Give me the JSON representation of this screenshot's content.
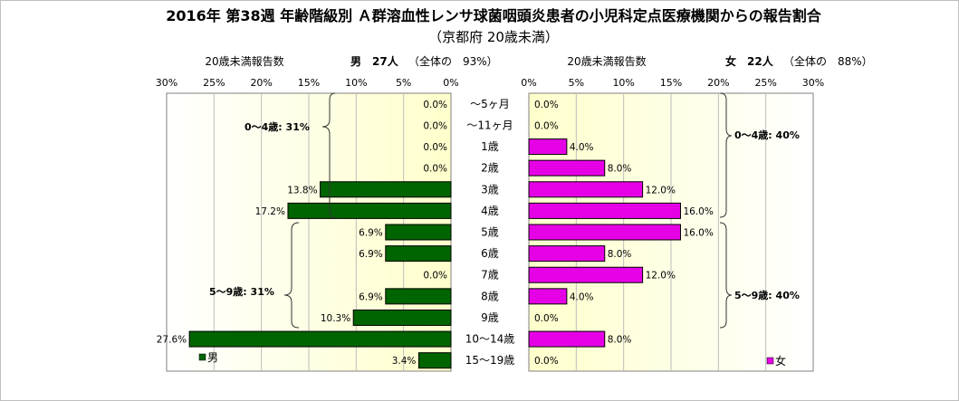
{
  "chart_data": {
    "type": "bar",
    "title": "2016年 第38週 年齢階級別 Ａ群溶血性レンサ球菌咽頭炎患者の小児科定点医療機関からの報告割合",
    "subtitle": "（京都府 20歳未満）",
    "categories": [
      "～5ヶ月",
      "～11ヶ月",
      "1歳",
      "2歳",
      "3歳",
      "4歳",
      "5歳",
      "6歳",
      "7歳",
      "8歳",
      "9歳",
      "10～14歳",
      "15～19歳"
    ],
    "series": [
      {
        "name": "男",
        "color": "#006400",
        "values": [
          0.0,
          0.0,
          0.0,
          0.0,
          13.8,
          17.2,
          6.9,
          6.9,
          0.0,
          6.9,
          10.3,
          27.6,
          3.4
        ],
        "value_labels": [
          "0.0%",
          "0.0%",
          "0.0%",
          "0.0%",
          "13.8%",
          "17.2%",
          "6.9%",
          "6.9%",
          "0.0%",
          "6.9%",
          "10.3%",
          "27.6%",
          "3.4%"
        ]
      },
      {
        "name": "女",
        "color": "#e600e6",
        "values": [
          0.0,
          0.0,
          4.0,
          8.0,
          12.0,
          16.0,
          16.0,
          8.0,
          12.0,
          4.0,
          0.0,
          8.0,
          0.0
        ],
        "value_labels": [
          "0.0%",
          "0.0%",
          "4.0%",
          "8.0%",
          "12.0%",
          "16.0%",
          "16.0%",
          "8.0%",
          "12.0%",
          "4.0%",
          "0.0%",
          "8.0%",
          "0.0%"
        ]
      }
    ],
    "xlim": [
      0,
      30
    ],
    "ticks": [
      0,
      5,
      10,
      15,
      20,
      25,
      30
    ],
    "tick_labels": [
      "0%",
      "5%",
      "10%",
      "15%",
      "20%",
      "25%",
      "30%"
    ],
    "male_header": {
      "count_label": "20歳未満報告数",
      "title": "男　27人",
      "share": "（全体の　93%）"
    },
    "female_header": {
      "count_label": "20歳未満報告数",
      "title": "女　22人",
      "share": "（全体の　88%）"
    },
    "group_annotations": {
      "male_0_4": "0～4歳: 31%",
      "male_5_9": "5～9歳: 31%",
      "female_0_4": "0～4歳: 40%",
      "female_5_9": "5～9歳: 40%"
    },
    "legend": {
      "male": "男",
      "female": "女"
    },
    "grid": true
  }
}
